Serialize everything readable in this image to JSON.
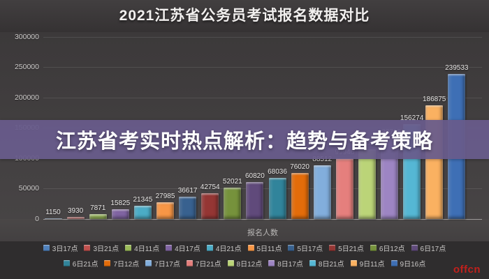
{
  "title": "2021江苏省公务员考试报名数据对比",
  "overlay_banner": {
    "text": "江苏省考实时热点解析：趋势与备考策略",
    "bg_color": "#685B8B",
    "text_color": "#FFFFFF"
  },
  "watermark": "offcn",
  "chart_data": {
    "type": "bar",
    "title": "2021江苏省公务员考试报名数据对比",
    "xlabel": "报名人数",
    "ylabel": "",
    "ylim": [
      0,
      300000
    ],
    "ytick_step": 50000,
    "yticks": [
      0,
      50000,
      100000,
      150000,
      200000,
      250000,
      300000
    ],
    "grid": true,
    "legend_position": "bottom",
    "series": [
      {
        "label": "3日17点",
        "value": 1150,
        "color": "#4F81BD"
      },
      {
        "label": "3日21点",
        "value": 3930,
        "color": "#C0504D"
      },
      {
        "label": "4日11点",
        "value": 7871,
        "color": "#9BBB59"
      },
      {
        "label": "4日17点",
        "value": 15825,
        "color": "#8064A2"
      },
      {
        "label": "4日21点",
        "value": 21345,
        "color": "#4BACC6"
      },
      {
        "label": "5日11点",
        "value": 27985,
        "color": "#F79646"
      },
      {
        "label": "5日17点",
        "value": 36617,
        "color": "#38618F"
      },
      {
        "label": "5日21点",
        "value": 42754,
        "color": "#943634"
      },
      {
        "label": "6日12点",
        "value": 52021,
        "color": "#76923C"
      },
      {
        "label": "6日17点",
        "value": 60820,
        "color": "#604A7B"
      },
      {
        "label": "6日21点",
        "value": 68036,
        "color": "#31849B"
      },
      {
        "label": "7日12点",
        "value": 76020,
        "color": "#E36C0A"
      },
      {
        "label": "7日17点",
        "value": 88512,
        "color": "#82AEDC"
      },
      {
        "label": "7日21点",
        "value": 99946,
        "color": "#E57F7D"
      },
      {
        "label": "8日12点",
        "value": 115000,
        "color": "#BBD478"
      },
      {
        "label": "8日17点",
        "value": 132765,
        "color": "#9D85C3"
      },
      {
        "label": "8日21点",
        "value": 156274,
        "color": "#55B7D4"
      },
      {
        "label": "9日11点",
        "value": 186875,
        "color": "#FAB161"
      },
      {
        "label": "9日16点",
        "value": 239533,
        "color": "#3E6FB5"
      }
    ]
  }
}
